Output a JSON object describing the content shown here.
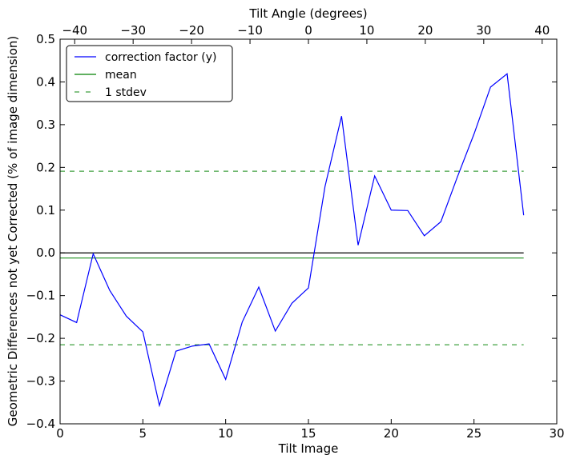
{
  "chart_data": {
    "type": "line",
    "xlabel": "Tilt Image",
    "ylabel": "Geometric Differences not yet Corrected (% of image dimension)",
    "top_xlabel": "Tilt Angle (degrees)",
    "xlim": [
      0,
      30
    ],
    "ylim": [
      -0.4,
      0.5
    ],
    "top_xlim": [
      -42.5,
      42.5
    ],
    "x_ticks": [
      0,
      5,
      10,
      15,
      20,
      25,
      30
    ],
    "x_tick_labels": [
      "0",
      "5",
      "10",
      "15",
      "20",
      "25",
      "30"
    ],
    "y_ticks": [
      -0.4,
      -0.3,
      -0.2,
      -0.1,
      0.0,
      0.1,
      0.2,
      0.3,
      0.4,
      0.5
    ],
    "y_tick_labels": [
      "−0.4",
      "−0.3",
      "−0.2",
      "−0.1",
      "0.0",
      "0.1",
      "0.2",
      "0.3",
      "0.4",
      "0.5"
    ],
    "top_ticks": [
      -40,
      -30,
      -20,
      -10,
      0,
      10,
      20,
      30,
      40
    ],
    "top_tick_labels": [
      "−40",
      "−30",
      "−20",
      "−10",
      "0",
      "10",
      "20",
      "30",
      "40"
    ],
    "grid": false,
    "legend_position": "top-left",
    "series": [
      {
        "name": "correction factor (y)",
        "color": "#0000ff",
        "style": "solid",
        "x": [
          0,
          1,
          2,
          3,
          4,
          5,
          6,
          7,
          8,
          9,
          10,
          11,
          12,
          13,
          14,
          15,
          16,
          17,
          18,
          19,
          20,
          21,
          22,
          23,
          24,
          25,
          26,
          27,
          28
        ],
        "y": [
          -0.145,
          -0.163,
          -0.002,
          -0.088,
          -0.148,
          -0.185,
          -0.357,
          -0.23,
          -0.218,
          -0.213,
          -0.296,
          -0.162,
          -0.08,
          -0.183,
          -0.118,
          -0.082,
          0.155,
          0.32,
          0.018,
          0.18,
          0.1,
          0.099,
          0.04,
          0.073,
          0.178,
          0.278,
          0.388,
          0.419,
          0.088
        ]
      },
      {
        "name": "mean",
        "color": "#008000",
        "style": "solid",
        "x": [
          0,
          28
        ],
        "y": [
          -0.012,
          -0.012
        ]
      },
      {
        "name": "1 stdev",
        "color": "#008000",
        "style": "dashed",
        "x": [
          0,
          28
        ],
        "y": [
          0.191,
          0.191
        ]
      },
      {
        "color": "#008000",
        "style": "dashed",
        "x": [
          0,
          28
        ],
        "y": [
          -0.215,
          -0.215
        ]
      },
      {
        "color": "#000000",
        "style": "solid",
        "x": [
          0,
          28
        ],
        "y": [
          0.0,
          0.0
        ]
      }
    ]
  }
}
